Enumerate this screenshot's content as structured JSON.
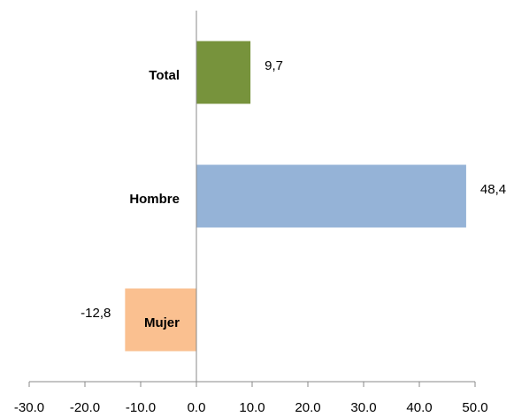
{
  "chart_data": {
    "type": "barh",
    "categories": [
      "Total",
      "Hombre",
      "Mujer"
    ],
    "values": [
      9.7,
      48.4,
      -12.8
    ],
    "value_labels": [
      "9,7",
      "48,4",
      "-12,8"
    ],
    "colors": [
      "#77933c",
      "#95b3d7",
      "#fac090"
    ],
    "xlim": [
      -30,
      50
    ],
    "xticks": [
      {
        "value": -30,
        "label": "-30.0"
      },
      {
        "value": -20,
        "label": "-20.0"
      },
      {
        "value": -10,
        "label": "-10.0"
      },
      {
        "value": 0,
        "label": "0.0"
      },
      {
        "value": 10,
        "label": "10.0"
      },
      {
        "value": 20,
        "label": "20.0"
      },
      {
        "value": 30,
        "label": "30.0"
      },
      {
        "value": 40,
        "label": "40.0"
      },
      {
        "value": 50,
        "label": "50.0"
      }
    ]
  }
}
